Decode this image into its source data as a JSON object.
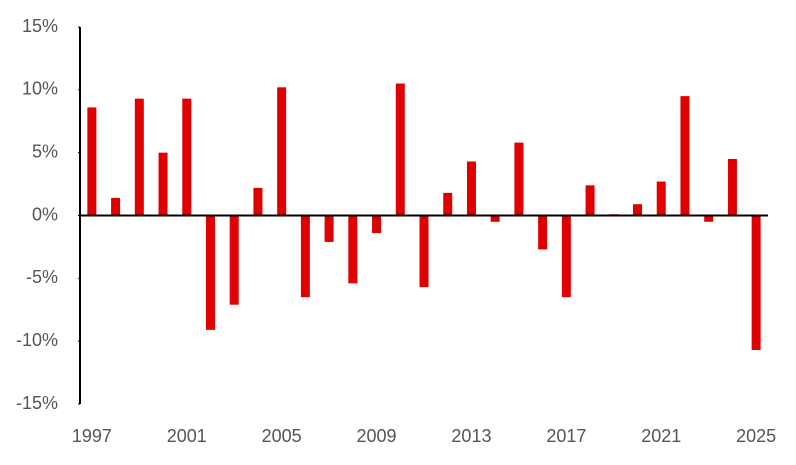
{
  "chart_data": {
    "type": "bar",
    "categories": [
      "1997",
      null,
      null,
      null,
      "2001",
      null,
      null,
      null,
      "2005",
      null,
      null,
      null,
      "2009",
      null,
      null,
      null,
      "2013",
      null,
      null,
      null,
      "2017",
      null,
      null,
      null,
      "2021",
      null,
      null,
      null,
      "2025"
    ],
    "values": [
      8.6,
      1.4,
      9.3,
      5.0,
      9.3,
      -9.1,
      -7.1,
      2.2,
      10.2,
      -6.5,
      -2.1,
      -5.4,
      -1.4,
      10.5,
      -5.7,
      1.8,
      4.3,
      -0.5,
      5.8,
      -2.7,
      -6.5,
      2.4,
      0.1,
      0.9,
      2.7,
      9.5,
      -0.5,
      4.5,
      -10.7
    ],
    "color": "#e00000",
    "ylim": [
      -15,
      15
    ],
    "yticks": [
      {
        "value": -15,
        "label": "-15%"
      },
      {
        "value": -10,
        "label": "-10%"
      },
      {
        "value": -5,
        "label": "-5%"
      },
      {
        "value": 0,
        "label": "0%"
      },
      {
        "value": 5,
        "label": "5%"
      },
      {
        "value": 10,
        "label": "10%"
      },
      {
        "value": 15,
        "label": "15%"
      }
    ],
    "grid": false
  }
}
